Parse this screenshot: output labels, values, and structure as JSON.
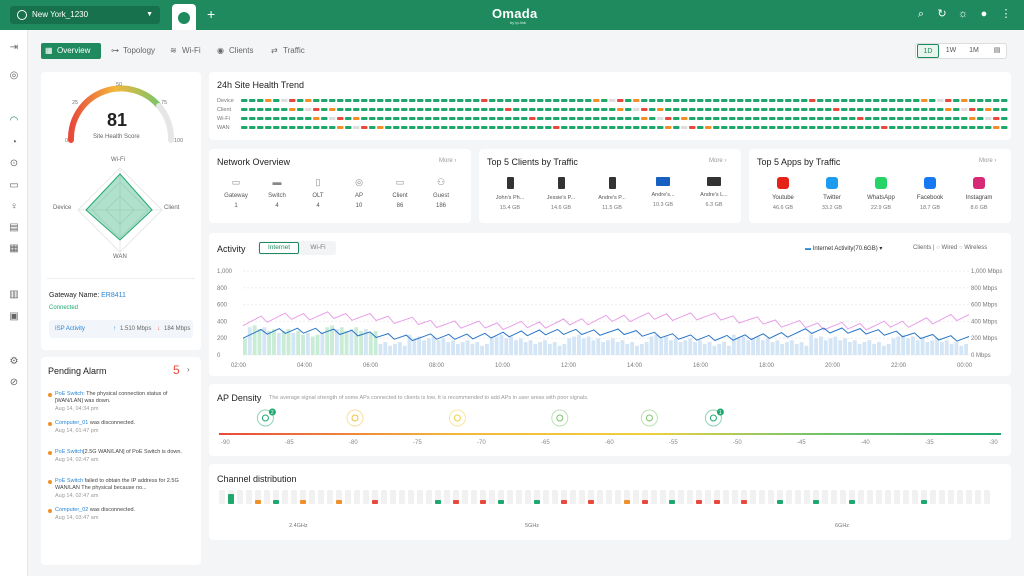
{
  "topbar": {
    "site": "New York_1230",
    "brand": "Omada",
    "brand_sub": "by tp-link",
    "icons": [
      "search-icon",
      "refresh-icon",
      "theme-icon",
      "avatar-icon"
    ]
  },
  "nav": {
    "tabs": [
      {
        "label": "Overview",
        "icon": "grid-icon"
      },
      {
        "label": "Topology",
        "icon": "topology-icon"
      },
      {
        "label": "Wi-Fi",
        "icon": "wifi-icon"
      },
      {
        "label": "Clients",
        "icon": "clients-icon"
      },
      {
        "label": "Traffic",
        "icon": "traffic-icon"
      }
    ],
    "ranges": [
      "1D",
      "1W",
      "1M"
    ]
  },
  "health": {
    "score": "81",
    "score_label": "Site Health Score",
    "gauge_ticks": [
      "0",
      "25",
      "50",
      "75",
      "100"
    ],
    "radar_labels": {
      "top": "Wi-Fi",
      "left": "Device",
      "right": "Client",
      "bottom": "WAN"
    }
  },
  "gateway": {
    "label": "Gateway Name:",
    "name": "ER8411",
    "status": "Connected",
    "isp_label": "ISP Activity",
    "up": "1.510 Mbps",
    "down": "184 Mbps"
  },
  "alarm": {
    "title": "Pending Alarm",
    "count": "5",
    "items": [
      {
        "link": "PoE Switch",
        "text": ": The physical connection status of [WAN/LAN] was down.",
        "time": "Aug 14, 04:34 pm",
        "color": "#f0902a"
      },
      {
        "link": "Computer_01",
        "text": " was disconnected.",
        "time": "Aug 14, 01:47 pm",
        "color": "#f0902a"
      },
      {
        "link": "PoE Switch",
        "text": "[2.5G WAN/LAN] of PoE Switch is down.",
        "time": "Aug 14, 02:47 am",
        "color": "#f0902a"
      },
      {
        "link": "PoE Switch",
        "text": " failed to obtain the IP address for 2.5G WAN/LAN The physical because no...",
        "time": "Aug 14, 02:47 am",
        "color": "#f0902a"
      },
      {
        "link": "Computer_02",
        "text": " was disconnected.",
        "time": "Aug 14, 03:47 am",
        "color": "#f0902a"
      }
    ]
  },
  "trend": {
    "title": "24h Site Health Trend",
    "rows": [
      "Device",
      "Client",
      "Wi-Fi",
      "WAN"
    ]
  },
  "network": {
    "title": "Network Overview",
    "more": "More",
    "items": [
      {
        "label": "Gateway",
        "value": "1",
        "icon": "gateway-icon"
      },
      {
        "label": "Switch",
        "value": "4",
        "icon": "switch-icon"
      },
      {
        "label": "OLT",
        "value": "4",
        "icon": "olt-icon"
      },
      {
        "label": "AP",
        "value": "10",
        "icon": "ap-icon"
      },
      {
        "label": "Client",
        "value": "86",
        "icon": "client-icon"
      },
      {
        "label": "Guest",
        "value": "186",
        "icon": "guest-icon"
      }
    ]
  },
  "top_clients": {
    "title": "Top 5 Clients by Traffic",
    "more": "More",
    "items": [
      {
        "name": "John's Ph...",
        "value": "15.4 GB",
        "icon": "phone-icon"
      },
      {
        "name": "Jessie's P...",
        "value": "14.6 GB",
        "icon": "phone-icon"
      },
      {
        "name": "Andre's P...",
        "value": "11.5 GB",
        "icon": "phone-icon"
      },
      {
        "name": "Andre's...",
        "value": "10.3 GB",
        "icon": "monitor-icon"
      },
      {
        "name": "Andre's L...",
        "value": "6.3 GB",
        "icon": "laptop-icon"
      }
    ]
  },
  "top_apps": {
    "title": "Top 5 Apps by Traffic",
    "more": "More",
    "items": [
      {
        "name": "Youtube",
        "value": "46.6 GB",
        "color": "#e62117",
        "icon": "youtube-icon"
      },
      {
        "name": "Twitter",
        "value": "33.2 GB",
        "color": "#1d9bf0",
        "icon": "twitter-icon"
      },
      {
        "name": "WhatsApp",
        "value": "22.9 GB",
        "color": "#25d366",
        "icon": "whatsapp-icon"
      },
      {
        "name": "Facebook",
        "value": "18.7 GB",
        "color": "#1877f2",
        "icon": "facebook-icon"
      },
      {
        "name": "Instagram",
        "value": "8.6 GB",
        "color": "#d62976",
        "icon": "instagram-icon"
      }
    ]
  },
  "activity": {
    "title": "Activity",
    "tabs": [
      "Internet",
      "Wi-Fi"
    ],
    "select": "Internet Activity(70.6GB)",
    "legend_label": "Clients",
    "legend_wired": "Wired",
    "legend_wireless": "Wireless",
    "y_left": [
      "1,000",
      "800",
      "600",
      "400",
      "200",
      "0"
    ],
    "y_right": [
      "1,000 Mbps",
      "800 Mbps",
      "600 Mbps",
      "400 Mbps",
      "200 Mbps",
      "0 Mbps"
    ],
    "x_ticks": [
      "02:00",
      "04:00",
      "06:00",
      "08:00",
      "10:00",
      "12:00",
      "14:00",
      "16:00",
      "18:00",
      "20:00",
      "22:00",
      "00:00"
    ]
  },
  "ap_density": {
    "title": "AP Density",
    "note": "The average signal strength of some APs connected to clients is low. It is recommended to add APs in user areas with poor signals.",
    "ticks": [
      "-90",
      "-85",
      "-80",
      "-75",
      "-70",
      "-65",
      "-60",
      "-55",
      "-50",
      "-45",
      "-40",
      "-35",
      "-30"
    ],
    "badges": [
      "2",
      "1"
    ]
  },
  "channel": {
    "title": "Channel distribution",
    "bands": [
      "2.4GHz",
      "5GHz",
      "6GHz"
    ]
  }
}
